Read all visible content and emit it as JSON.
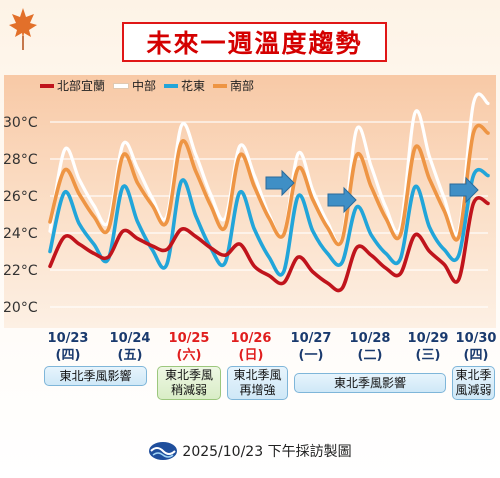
{
  "title": "未來一週溫度趨勢",
  "footer": "2025/10/23 下午採訪製圖",
  "colors": {
    "north": "#c0141c",
    "central": "#ffffff",
    "east": "#22a5d9",
    "south": "#ee9544",
    "holiday": "#e01e1e",
    "normal_date": "#1a3a6e"
  },
  "dates": [
    {
      "date": "10/23",
      "weekday": "(四)",
      "holiday": false
    },
    {
      "date": "10/24",
      "weekday": "(五)",
      "holiday": false
    },
    {
      "date": "10/25",
      "weekday": "(六)",
      "holiday": true
    },
    {
      "date": "10/26",
      "weekday": "(日)",
      "holiday": true
    },
    {
      "date": "10/27",
      "weekday": "(一)",
      "holiday": false
    },
    {
      "date": "10/28",
      "weekday": "(二)",
      "holiday": false
    },
    {
      "date": "10/29",
      "weekday": "(三)",
      "holiday": false
    },
    {
      "date": "10/30",
      "weekday": "(四)",
      "holiday": false
    }
  ],
  "weather_notes": [
    {
      "line1": "東北季風影響",
      "line2": "",
      "style": "blue"
    },
    {
      "line1": "東北季風",
      "line2": "稍減弱",
      "style": "green"
    },
    {
      "line1": "東北季風",
      "line2": "再增強",
      "style": "blue"
    },
    {
      "line1": "東北季風影響",
      "line2": "",
      "style": "blue"
    },
    {
      "line1": "東北季",
      "line2": "風減弱",
      "style": "blue"
    }
  ],
  "chart_data": {
    "type": "line",
    "x": [
      "10/23 00",
      "10/23 06",
      "10/23 12",
      "10/23 18",
      "10/24 00",
      "10/24 06",
      "10/24 12",
      "10/24 18",
      "10/25 00",
      "10/25 06",
      "10/25 12",
      "10/25 18",
      "10/26 00",
      "10/26 06",
      "10/26 12",
      "10/26 18",
      "10/27 00",
      "10/27 06",
      "10/27 12",
      "10/27 18",
      "10/28 00",
      "10/28 06",
      "10/28 12",
      "10/28 18",
      "10/29 00",
      "10/29 06",
      "10/29 12",
      "10/29 18",
      "10/30 00",
      "10/30 06",
      "10/30 12"
    ],
    "series": [
      {
        "name": "北部宜蘭",
        "color": "#c0141c",
        "values": [
          22.2,
          23.8,
          23.4,
          22.9,
          22.7,
          24.1,
          23.7,
          23.3,
          23.1,
          24.2,
          23.8,
          23.2,
          22.8,
          23.4,
          22.2,
          21.7,
          21.3,
          22.7,
          21.9,
          21.3,
          21.0,
          23.2,
          22.8,
          22.1,
          21.8,
          23.9,
          23.0,
          22.3,
          21.5,
          25.6,
          25.6
        ]
      },
      {
        "name": "中部",
        "color": "#ffffff",
        "values": [
          24.1,
          28.5,
          26.9,
          25.5,
          24.6,
          28.8,
          27.5,
          25.9,
          24.9,
          29.8,
          28.2,
          26.1,
          24.8,
          28.7,
          27.1,
          25.0,
          23.9,
          28.3,
          26.3,
          24.6,
          23.7,
          29.6,
          27.6,
          25.4,
          24.3,
          30.5,
          28.1,
          25.9,
          24.1,
          31.0,
          31.0
        ]
      },
      {
        "name": "花東",
        "color": "#22a5d9",
        "values": [
          23.0,
          26.2,
          24.5,
          23.4,
          22.6,
          26.5,
          24.6,
          23.1,
          22.3,
          26.8,
          24.9,
          23.2,
          22.4,
          26.2,
          24.2,
          22.7,
          21.9,
          26.0,
          24.1,
          22.9,
          22.4,
          25.4,
          23.9,
          22.9,
          22.6,
          26.5,
          24.3,
          23.1,
          22.8,
          27.1,
          27.1
        ]
      },
      {
        "name": "南部",
        "color": "#ee9544",
        "values": [
          24.6,
          27.4,
          26.1,
          24.9,
          24.2,
          28.2,
          26.7,
          25.5,
          24.6,
          28.9,
          27.3,
          25.5,
          24.3,
          28.2,
          26.5,
          24.8,
          23.9,
          27.5,
          25.8,
          24.3,
          23.6,
          28.2,
          26.5,
          24.8,
          23.9,
          28.6,
          26.9,
          25.2,
          23.8,
          29.4,
          29.4
        ]
      }
    ],
    "y_ticks": [
      "30°C",
      "28°C",
      "26°C",
      "24°C",
      "22°C",
      "20°C"
    ],
    "ylim": [
      20,
      31
    ],
    "legend_position": "top-left",
    "grid": "horizontal"
  }
}
